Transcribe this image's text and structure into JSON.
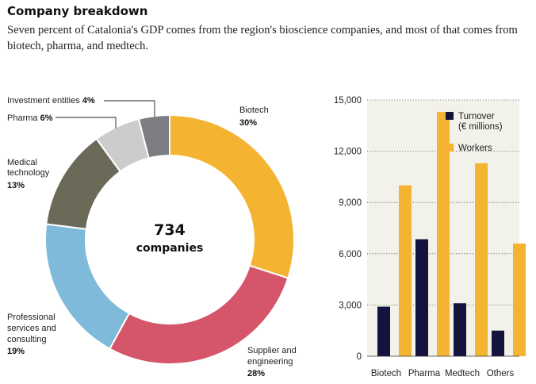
{
  "header": {
    "title": "Company breakdown",
    "subtitle": "Seven percent of Catalonia's GDP comes from the region's bioscience companies, and most of that comes from biotech, pharma, and medtech."
  },
  "chart_data": [
    {
      "type": "pie",
      "style": "donut",
      "center": {
        "value": "734",
        "label": "companies"
      },
      "slices": [
        {
          "label": "Biotech",
          "pct_label": "30%",
          "value": 30,
          "color": "#f4b431"
        },
        {
          "label": "Supplier and engineering",
          "pct_label": "28%",
          "value": 28,
          "color": "#d5566a"
        },
        {
          "label": "Professional services and consulting",
          "pct_label": "19%",
          "value": 19,
          "color": "#7fbadb"
        },
        {
          "label": "Medical technology",
          "pct_label": "13%",
          "value": 13,
          "color": "#6b6a59"
        },
        {
          "label": "Pharma",
          "pct_label": "6%",
          "value": 6,
          "color": "#cccccc"
        },
        {
          "label": "Investment entities",
          "pct_label": "4%",
          "value": 4,
          "color": "#7d7e83"
        }
      ]
    },
    {
      "type": "bar",
      "categories": [
        "Biotech",
        "Pharma",
        "Medtech",
        "Others"
      ],
      "series": [
        {
          "name": "Turnover (€ millions)",
          "name_lines": [
            "Turnover",
            "(€ millions)"
          ],
          "color": "#14133d",
          "values": [
            2900,
            6850,
            3100,
            1500
          ]
        },
        {
          "name": "Workers",
          "name_lines": [
            "Workers"
          ],
          "color": "#f4b431",
          "values": [
            10000,
            14300,
            11300,
            6600
          ]
        }
      ],
      "ylim": [
        0,
        15000
      ],
      "yticks": [
        0,
        3000,
        6000,
        9000,
        12000,
        15000
      ],
      "ytick_labels": [
        "0",
        "3,000",
        "6,000",
        "9,000",
        "12,000",
        "15,000"
      ],
      "grid": "dotted",
      "background": "#f3f2ea",
      "legend": "top-right"
    }
  ]
}
